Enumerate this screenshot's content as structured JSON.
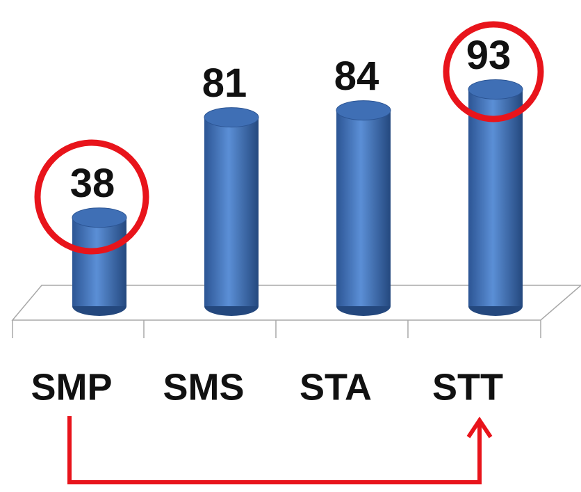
{
  "chart_data": {
    "type": "bar",
    "categories": [
      "SMP",
      "SMS",
      "STA",
      "STT"
    ],
    "values": [
      38,
      81,
      84,
      93
    ],
    "color": "#3f6fb5"
  }
}
